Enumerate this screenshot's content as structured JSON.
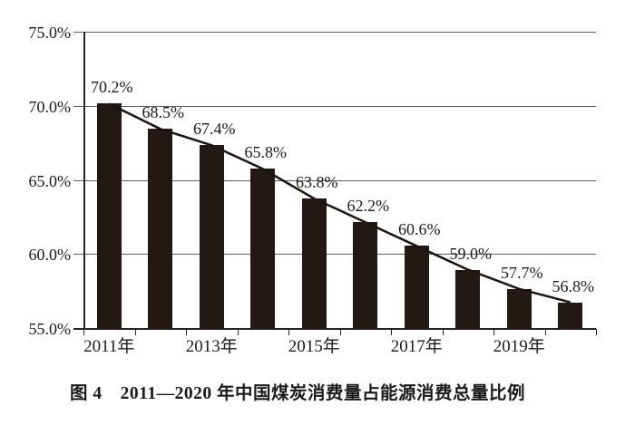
{
  "figure": {
    "caption": "图 4　2011—2020 年中国煤炭消费量占能源消费总量比例"
  },
  "chart_data": {
    "type": "bar",
    "subtype": "bar-with-trend-line",
    "title": "图 4　2011—2020 年中国煤炭消费量占能源消费总量比例",
    "categories": [
      "2011年",
      "2012年",
      "2013年",
      "2014年",
      "2015年",
      "2016年",
      "2017年",
      "2018年",
      "2019年",
      "2020年"
    ],
    "values": [
      70.2,
      68.5,
      67.4,
      65.8,
      63.8,
      62.2,
      60.6,
      59.0,
      57.7,
      56.8
    ],
    "data_labels": [
      "70.2%",
      "68.5%",
      "67.4%",
      "65.8%",
      "63.8%",
      "62.2%",
      "60.6%",
      "59.0%",
      "57.7%",
      "56.8%"
    ],
    "x_tick_labels": [
      "2011年",
      "2013年",
      "2015年",
      "2017年",
      "2019年"
    ],
    "x_tick_category_indexes": [
      0,
      2,
      4,
      6,
      8
    ],
    "y_tick_labels": [
      "75.0%",
      "70.0%",
      "65.0%",
      "60.0%",
      "55.0%"
    ],
    "y_tick_values": [
      75,
      70,
      65,
      60,
      55
    ],
    "ylim": [
      55,
      75
    ],
    "xlabel": "",
    "ylabel": "",
    "grid": "horizontal",
    "legend": "none",
    "colors": {
      "bar": "#231813",
      "trend_line": "#1c1410",
      "grid": "#5f5f5f",
      "axis": "#242424",
      "text": "#1a1a1a",
      "background": "#ffffff"
    }
  }
}
